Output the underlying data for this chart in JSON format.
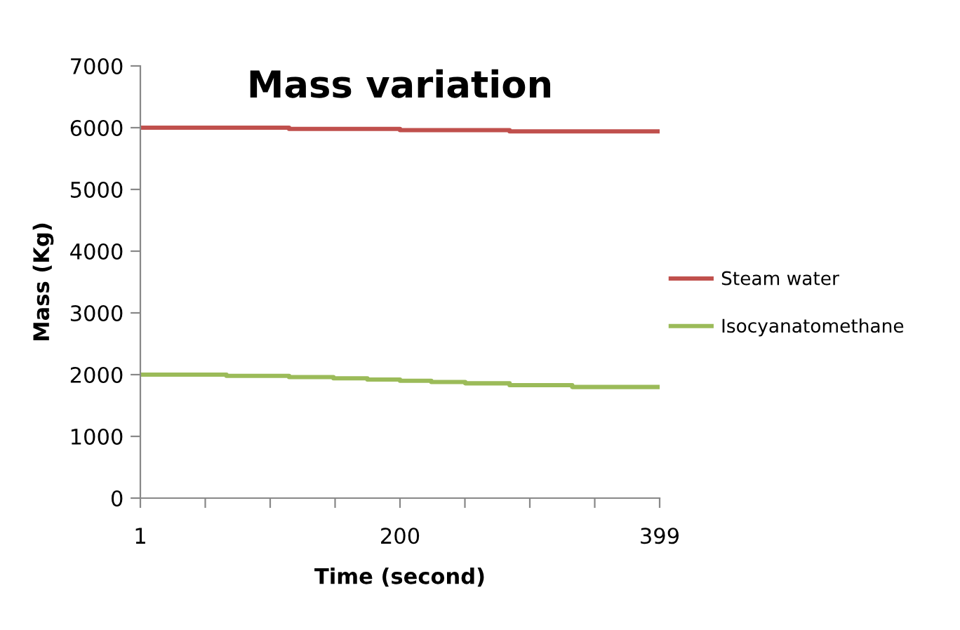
{
  "chart_data": {
    "type": "step",
    "title": "Mass variation",
    "xlabel": "Time (second)",
    "ylabel": "Mass (Kg)",
    "xlim": [
      1,
      399
    ],
    "xticks": [
      1,
      {
        "value": 50.75,
        "label": null
      },
      {
        "value": 100.5,
        "label": null
      },
      {
        "value": 150.25,
        "label": null
      },
      200,
      {
        "value": 249.75,
        "label": null
      },
      {
        "value": 299.5,
        "label": null
      },
      {
        "value": 349.25,
        "label": null
      },
      399
    ],
    "ylim": [
      0,
      7000
    ],
    "yticks": [
      0,
      1000,
      2000,
      3000,
      4000,
      5000,
      6000,
      7000
    ],
    "grid": false,
    "legend": "right",
    "marker": "none",
    "line_style": "solid",
    "series": [
      {
        "name": "Steam water",
        "color": "#c0504d",
        "x": [
          1,
          115,
          200,
          284,
          399
        ],
        "values": [
          6000,
          5980,
          5960,
          5940,
          5940
        ]
      },
      {
        "name": "Isocyanatomethane",
        "color": "#9bbb59",
        "x": [
          1,
          67,
          115,
          149,
          175,
          200,
          224,
          250,
          284,
          332,
          399
        ],
        "values": [
          2000,
          1980,
          1960,
          1940,
          1920,
          1900,
          1880,
          1860,
          1830,
          1800,
          1800
        ]
      }
    ]
  }
}
